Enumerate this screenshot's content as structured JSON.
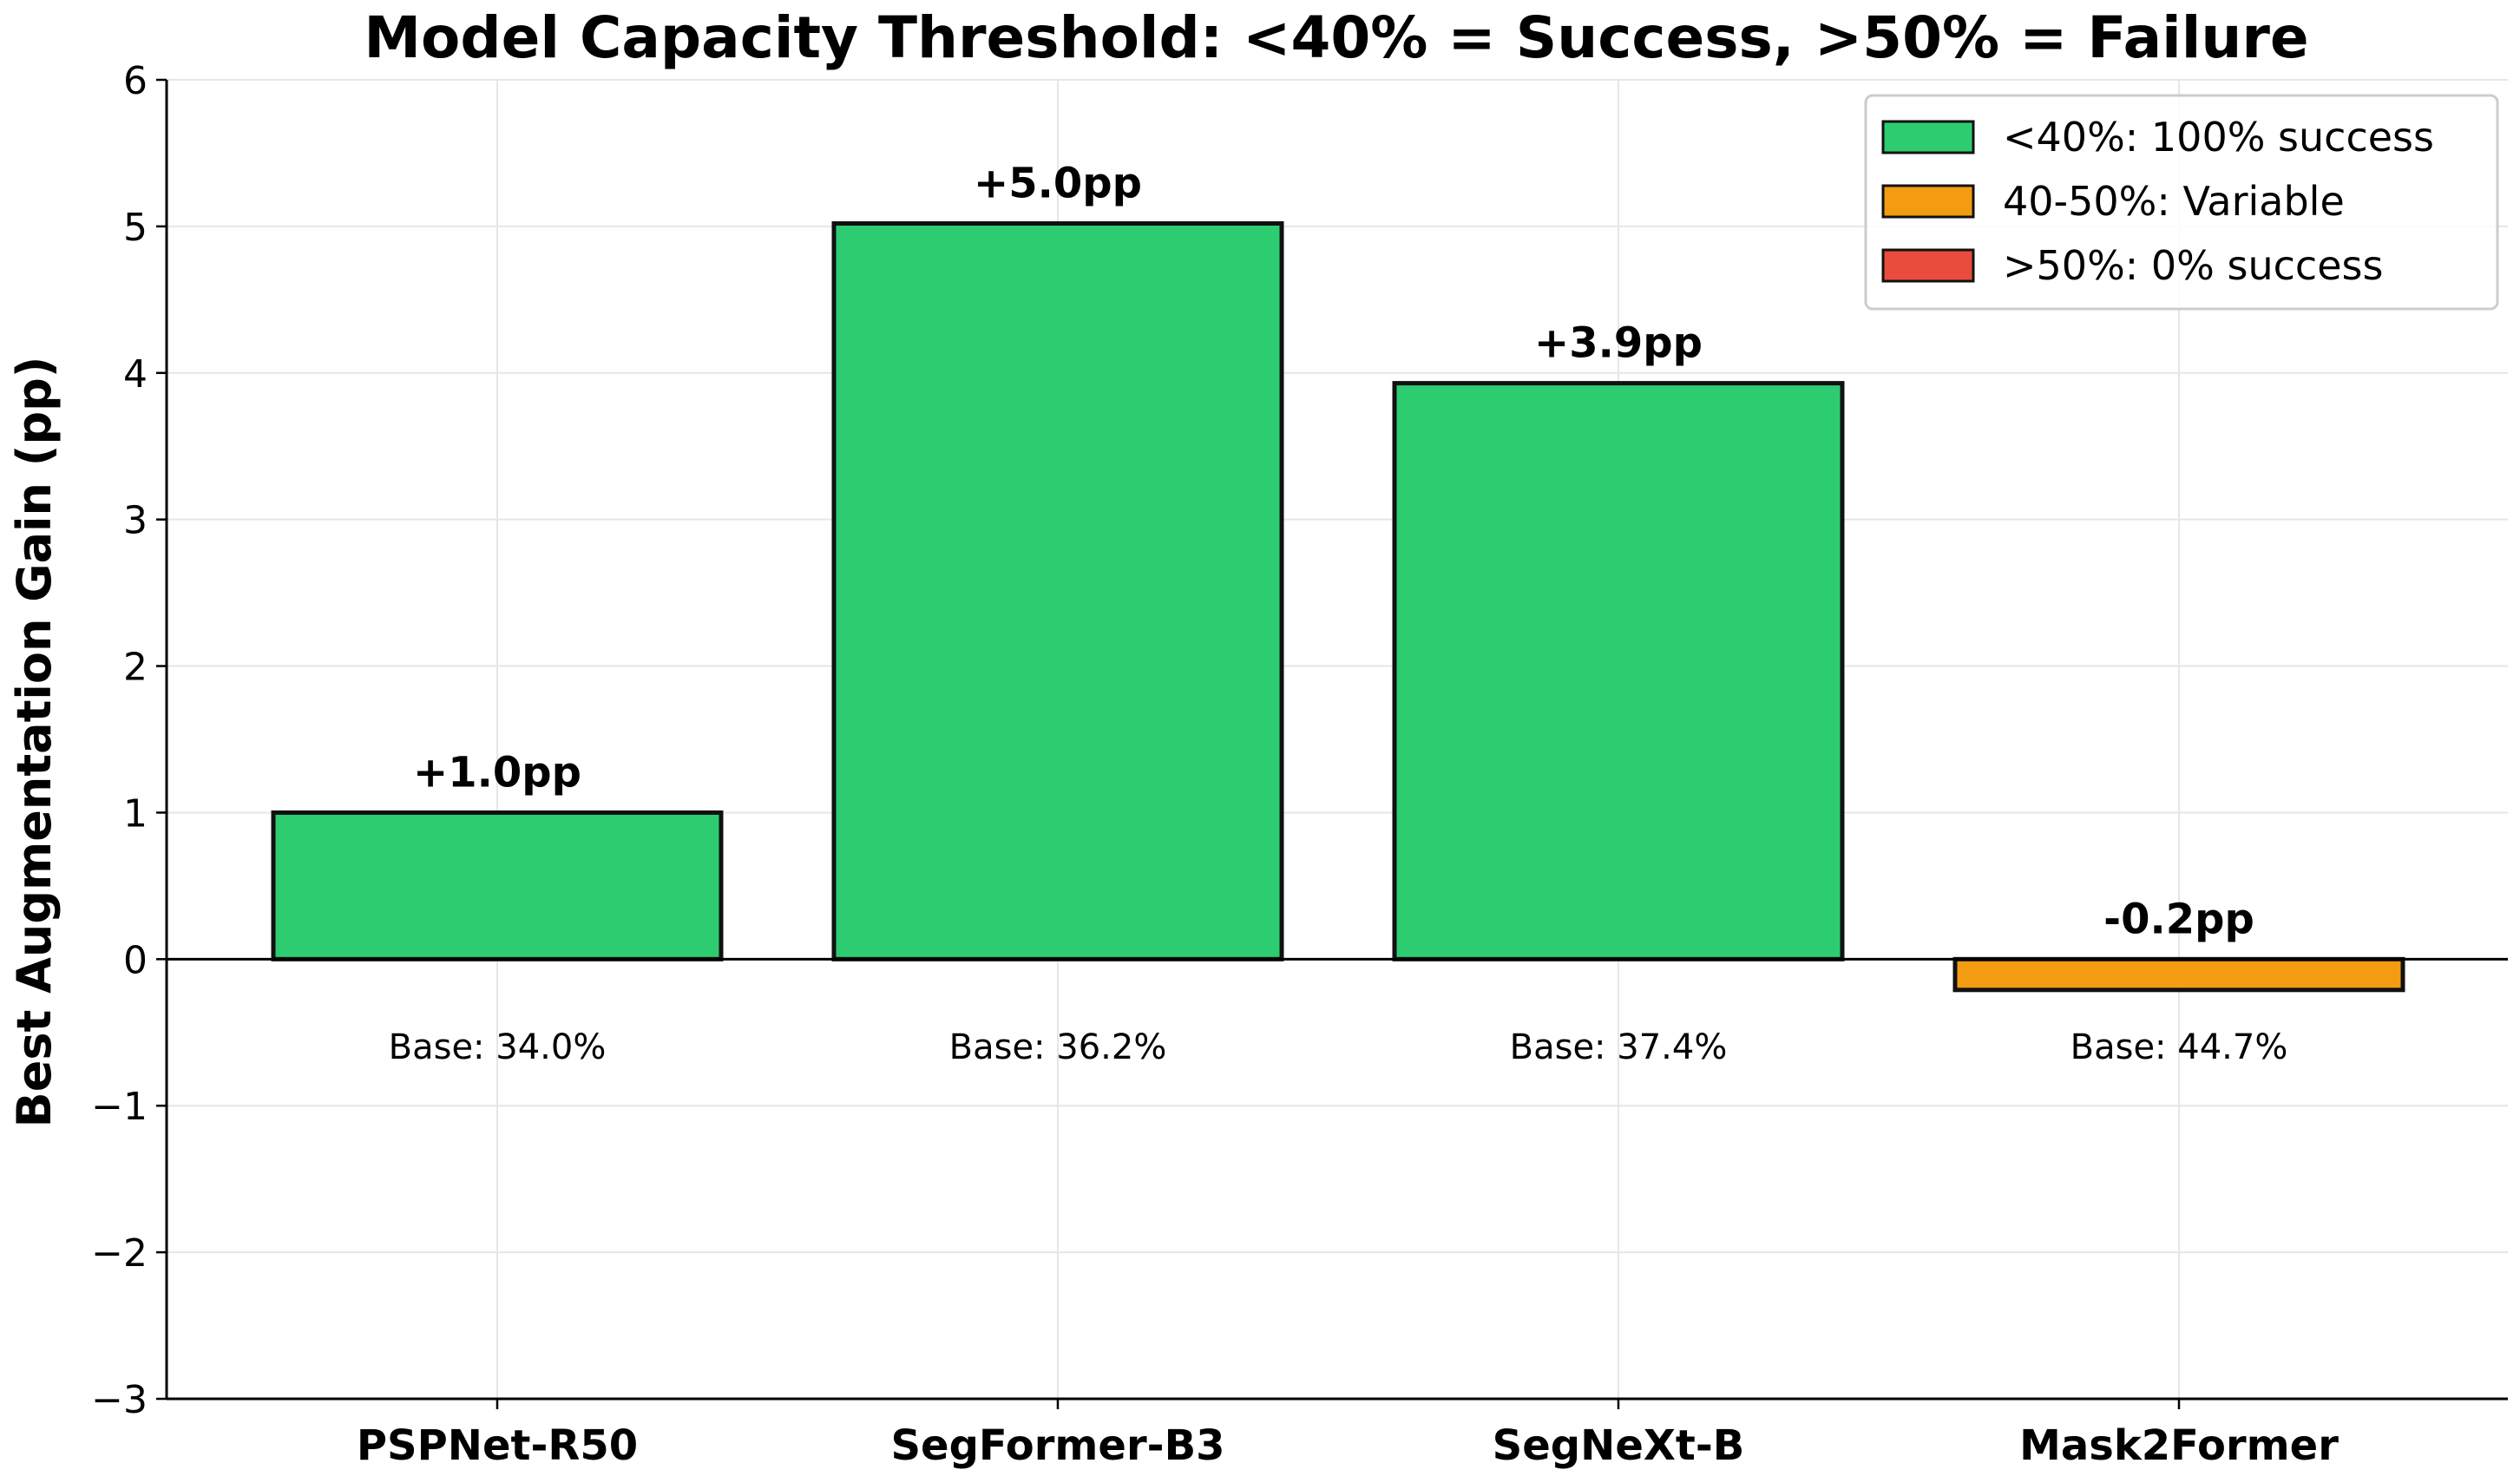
{
  "chart_data": {
    "type": "bar",
    "title": "Model Capacity Threshold: <40% = Success, >50% = Failure",
    "xlabel": "",
    "ylabel": "Best Augmentation Gain (pp)",
    "ylim": [
      -3,
      6
    ],
    "yticks": [
      -3,
      -2,
      -1,
      0,
      1,
      2,
      3,
      4,
      5,
      6
    ],
    "ytick_labels": [
      "−3",
      "−2",
      "−1",
      "0",
      "1",
      "2",
      "3",
      "4",
      "5",
      "6"
    ],
    "grid": true,
    "categories": [
      "PSPNet-R50",
      "SegFormer-B3",
      "SegNeXt-B",
      "Mask2Former"
    ],
    "values": [
      1.0,
      5.02,
      3.93,
      -0.21
    ],
    "value_labels": [
      "+1.0pp",
      "+5.0pp",
      "+3.9pp",
      "-0.2pp"
    ],
    "base_labels": [
      "Base: 34.0%",
      "Base: 36.2%",
      "Base: 37.4%",
      "Base: 44.7%"
    ],
    "bar_colors": [
      "#2ecc71",
      "#2ecc71",
      "#2ecc71",
      "#f39c12"
    ],
    "legend_position": "top-right",
    "legend": [
      {
        "label": "<40%: 100% success",
        "color": "#2ecc71"
      },
      {
        "label": "40-50%: Variable",
        "color": "#f39c12"
      },
      {
        "label": ">50%: 0% success",
        "color": "#e74c3c"
      }
    ]
  }
}
